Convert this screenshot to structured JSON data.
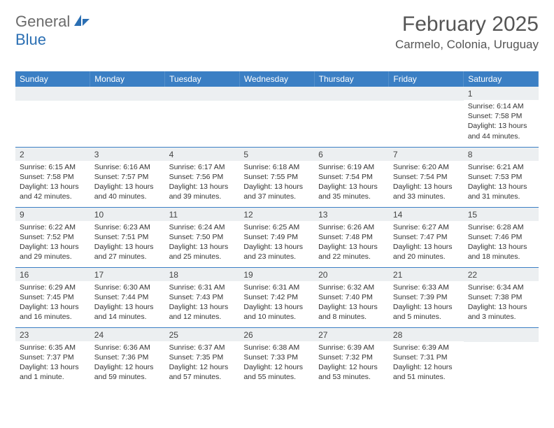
{
  "logo": {
    "text1": "General",
    "text2": "Blue"
  },
  "title": "February 2025",
  "location": "Carmelo, Colonia, Uruguay",
  "colors": {
    "header_bg": "#3b7fc4",
    "header_text": "#ffffff",
    "num_strip_bg": "#eceff1",
    "body_bg": "#ffffff",
    "border": "#3b7fc4",
    "logo_gray": "#6b6b6b",
    "logo_blue": "#2b6fb3"
  },
  "dayHeaders": [
    "Sunday",
    "Monday",
    "Tuesday",
    "Wednesday",
    "Thursday",
    "Friday",
    "Saturday"
  ],
  "weeks": [
    [
      {
        "n": "",
        "sr": "",
        "ss": "",
        "dl": ""
      },
      {
        "n": "",
        "sr": "",
        "ss": "",
        "dl": ""
      },
      {
        "n": "",
        "sr": "",
        "ss": "",
        "dl": ""
      },
      {
        "n": "",
        "sr": "",
        "ss": "",
        "dl": ""
      },
      {
        "n": "",
        "sr": "",
        "ss": "",
        "dl": ""
      },
      {
        "n": "",
        "sr": "",
        "ss": "",
        "dl": ""
      },
      {
        "n": "1",
        "sr": "Sunrise: 6:14 AM",
        "ss": "Sunset: 7:58 PM",
        "dl": "Daylight: 13 hours and 44 minutes."
      }
    ],
    [
      {
        "n": "2",
        "sr": "Sunrise: 6:15 AM",
        "ss": "Sunset: 7:58 PM",
        "dl": "Daylight: 13 hours and 42 minutes."
      },
      {
        "n": "3",
        "sr": "Sunrise: 6:16 AM",
        "ss": "Sunset: 7:57 PM",
        "dl": "Daylight: 13 hours and 40 minutes."
      },
      {
        "n": "4",
        "sr": "Sunrise: 6:17 AM",
        "ss": "Sunset: 7:56 PM",
        "dl": "Daylight: 13 hours and 39 minutes."
      },
      {
        "n": "5",
        "sr": "Sunrise: 6:18 AM",
        "ss": "Sunset: 7:55 PM",
        "dl": "Daylight: 13 hours and 37 minutes."
      },
      {
        "n": "6",
        "sr": "Sunrise: 6:19 AM",
        "ss": "Sunset: 7:54 PM",
        "dl": "Daylight: 13 hours and 35 minutes."
      },
      {
        "n": "7",
        "sr": "Sunrise: 6:20 AM",
        "ss": "Sunset: 7:54 PM",
        "dl": "Daylight: 13 hours and 33 minutes."
      },
      {
        "n": "8",
        "sr": "Sunrise: 6:21 AM",
        "ss": "Sunset: 7:53 PM",
        "dl": "Daylight: 13 hours and 31 minutes."
      }
    ],
    [
      {
        "n": "9",
        "sr": "Sunrise: 6:22 AM",
        "ss": "Sunset: 7:52 PM",
        "dl": "Daylight: 13 hours and 29 minutes."
      },
      {
        "n": "10",
        "sr": "Sunrise: 6:23 AM",
        "ss": "Sunset: 7:51 PM",
        "dl": "Daylight: 13 hours and 27 minutes."
      },
      {
        "n": "11",
        "sr": "Sunrise: 6:24 AM",
        "ss": "Sunset: 7:50 PM",
        "dl": "Daylight: 13 hours and 25 minutes."
      },
      {
        "n": "12",
        "sr": "Sunrise: 6:25 AM",
        "ss": "Sunset: 7:49 PM",
        "dl": "Daylight: 13 hours and 23 minutes."
      },
      {
        "n": "13",
        "sr": "Sunrise: 6:26 AM",
        "ss": "Sunset: 7:48 PM",
        "dl": "Daylight: 13 hours and 22 minutes."
      },
      {
        "n": "14",
        "sr": "Sunrise: 6:27 AM",
        "ss": "Sunset: 7:47 PM",
        "dl": "Daylight: 13 hours and 20 minutes."
      },
      {
        "n": "15",
        "sr": "Sunrise: 6:28 AM",
        "ss": "Sunset: 7:46 PM",
        "dl": "Daylight: 13 hours and 18 minutes."
      }
    ],
    [
      {
        "n": "16",
        "sr": "Sunrise: 6:29 AM",
        "ss": "Sunset: 7:45 PM",
        "dl": "Daylight: 13 hours and 16 minutes."
      },
      {
        "n": "17",
        "sr": "Sunrise: 6:30 AM",
        "ss": "Sunset: 7:44 PM",
        "dl": "Daylight: 13 hours and 14 minutes."
      },
      {
        "n": "18",
        "sr": "Sunrise: 6:31 AM",
        "ss": "Sunset: 7:43 PM",
        "dl": "Daylight: 13 hours and 12 minutes."
      },
      {
        "n": "19",
        "sr": "Sunrise: 6:31 AM",
        "ss": "Sunset: 7:42 PM",
        "dl": "Daylight: 13 hours and 10 minutes."
      },
      {
        "n": "20",
        "sr": "Sunrise: 6:32 AM",
        "ss": "Sunset: 7:40 PM",
        "dl": "Daylight: 13 hours and 8 minutes."
      },
      {
        "n": "21",
        "sr": "Sunrise: 6:33 AM",
        "ss": "Sunset: 7:39 PM",
        "dl": "Daylight: 13 hours and 5 minutes."
      },
      {
        "n": "22",
        "sr": "Sunrise: 6:34 AM",
        "ss": "Sunset: 7:38 PM",
        "dl": "Daylight: 13 hours and 3 minutes."
      }
    ],
    [
      {
        "n": "23",
        "sr": "Sunrise: 6:35 AM",
        "ss": "Sunset: 7:37 PM",
        "dl": "Daylight: 13 hours and 1 minute."
      },
      {
        "n": "24",
        "sr": "Sunrise: 6:36 AM",
        "ss": "Sunset: 7:36 PM",
        "dl": "Daylight: 12 hours and 59 minutes."
      },
      {
        "n": "25",
        "sr": "Sunrise: 6:37 AM",
        "ss": "Sunset: 7:35 PM",
        "dl": "Daylight: 12 hours and 57 minutes."
      },
      {
        "n": "26",
        "sr": "Sunrise: 6:38 AM",
        "ss": "Sunset: 7:33 PM",
        "dl": "Daylight: 12 hours and 55 minutes."
      },
      {
        "n": "27",
        "sr": "Sunrise: 6:39 AM",
        "ss": "Sunset: 7:32 PM",
        "dl": "Daylight: 12 hours and 53 minutes."
      },
      {
        "n": "28",
        "sr": "Sunrise: 6:39 AM",
        "ss": "Sunset: 7:31 PM",
        "dl": "Daylight: 12 hours and 51 minutes."
      },
      {
        "n": "",
        "sr": "",
        "ss": "",
        "dl": ""
      }
    ]
  ]
}
